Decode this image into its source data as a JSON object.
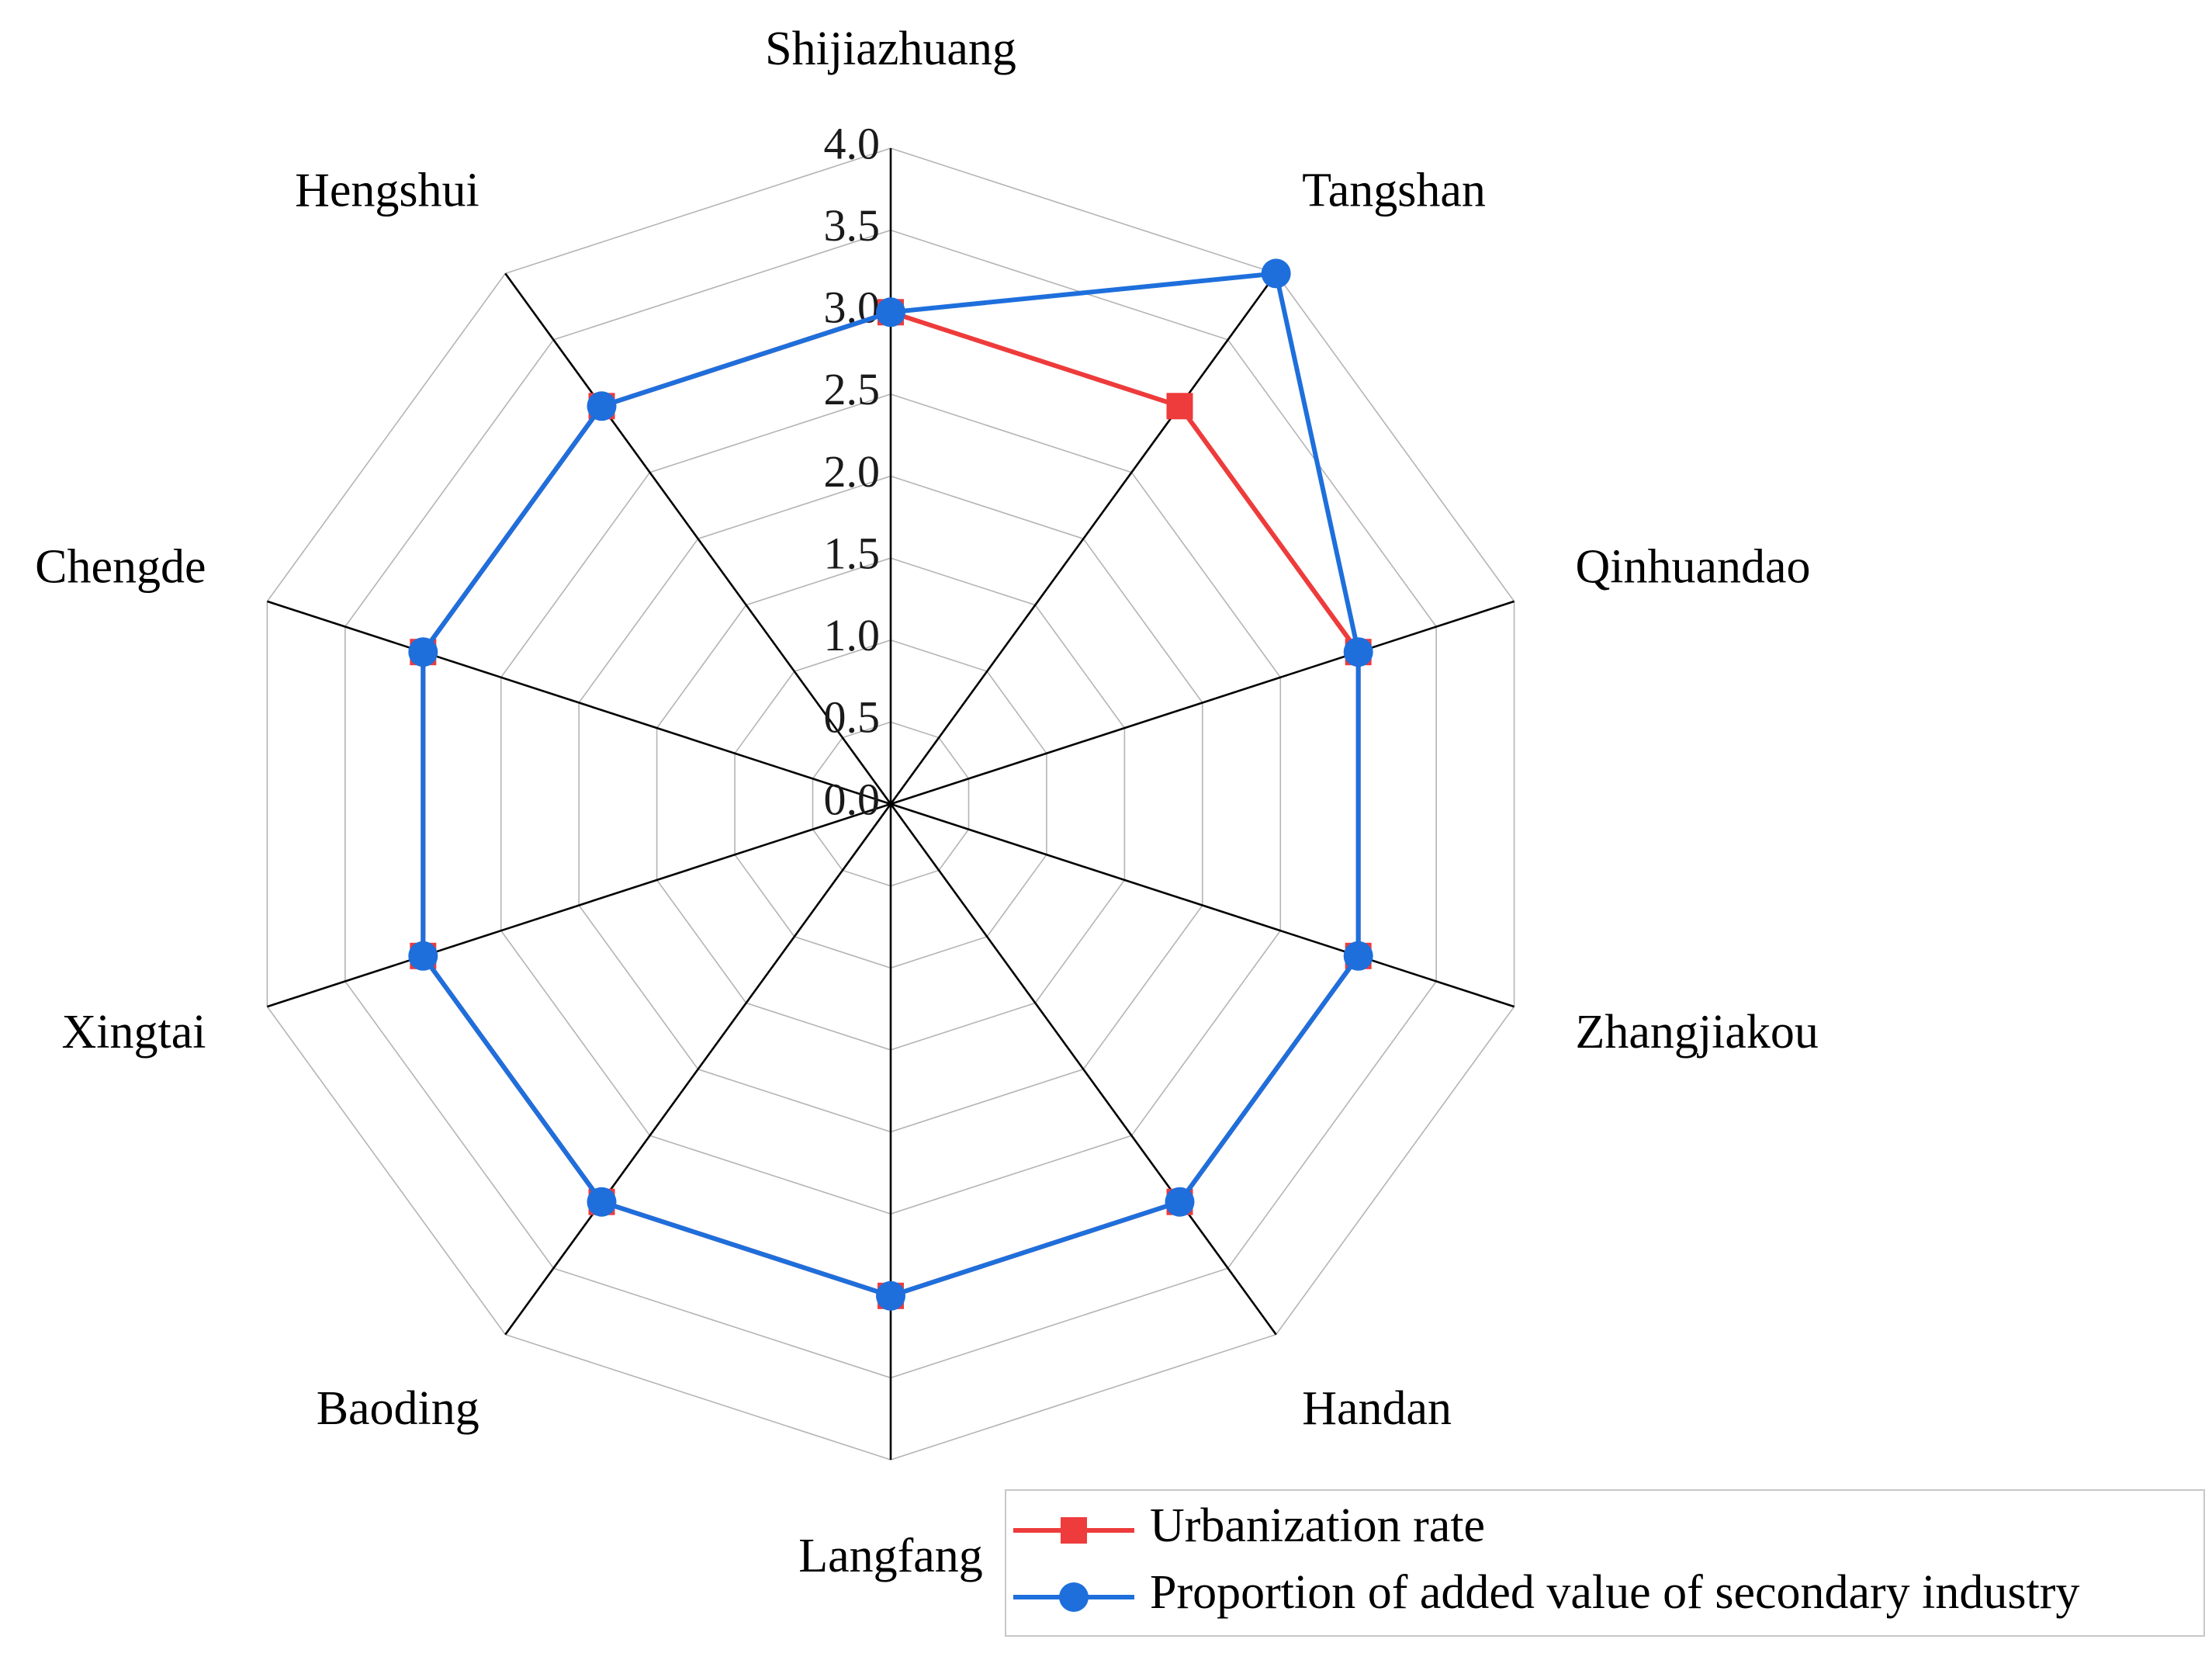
{
  "chart_data": {
    "type": "radar",
    "categories": [
      "Shijiazhuang",
      "Tangshan",
      "Qinhuandao",
      "Zhangjiakou",
      "Handan",
      "Langfang",
      "Baoding",
      "Xingtai",
      "Chengde",
      "Hengshui"
    ],
    "radial_ticks": [
      "0.0",
      "0.5",
      "1.0",
      "1.5",
      "2.0",
      "2.5",
      "3.0",
      "3.5",
      "4.0"
    ],
    "rlim": [
      0,
      4
    ],
    "grid_step": 0.5,
    "legend_position": "bottom-right",
    "series": [
      {
        "name": "Urbanization rate",
        "color": "#ee3b3b",
        "marker": "square",
        "values": [
          3.0,
          3.0,
          3.0,
          3.0,
          3.0,
          3.0,
          3.0,
          3.0,
          3.0,
          3.0
        ]
      },
      {
        "name": "Proportion of added value of secondary industry",
        "color": "#1e6fdc",
        "marker": "circle",
        "values": [
          3.0,
          4.0,
          3.0,
          3.0,
          3.0,
          3.0,
          3.0,
          3.0,
          3.0,
          3.0
        ]
      }
    ]
  }
}
